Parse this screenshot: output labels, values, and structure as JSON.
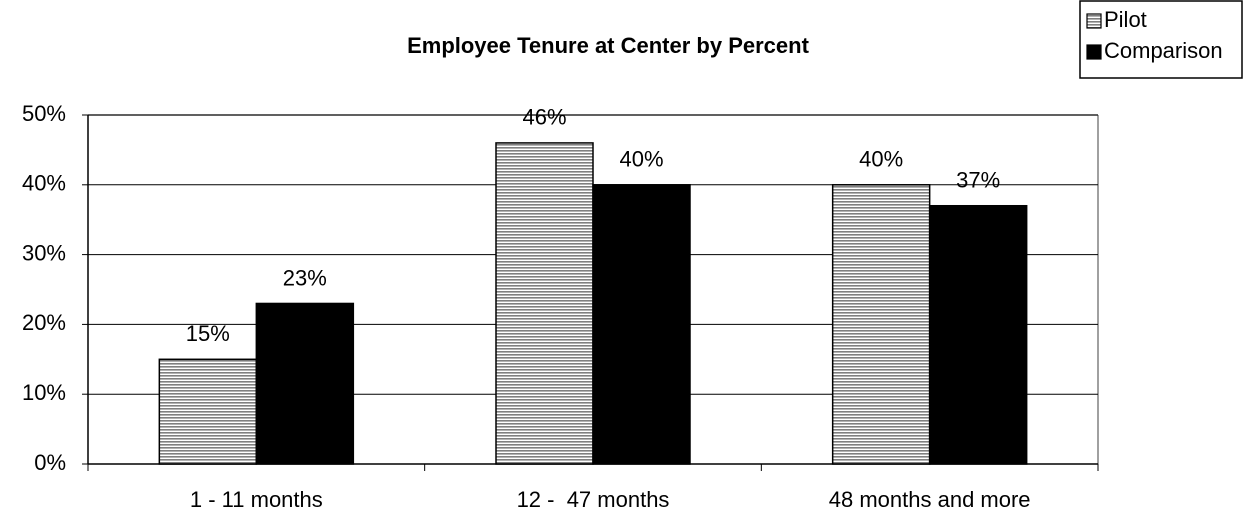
{
  "chart_data": {
    "type": "bar",
    "title": "Employee Tenure at Center by Percent",
    "categories": [
      "1 - 11 months",
      "12 -  47 months",
      "48 months and more"
    ],
    "series": [
      {
        "name": "Pilot",
        "color": "#808080",
        "values": [
          15,
          46,
          40
        ],
        "value_labels": [
          "15%",
          "46%",
          "40%"
        ]
      },
      {
        "name": "Comparison",
        "color": "#000000",
        "values": [
          23,
          40,
          37
        ],
        "value_labels": [
          "23%",
          "40%",
          "37%"
        ]
      }
    ],
    "ylim": [
      0,
      50
    ],
    "yticks": [
      {
        "value": 0,
        "label": "0%"
      },
      {
        "value": 10,
        "label": "10%"
      },
      {
        "value": 20,
        "label": "20%"
      },
      {
        "value": 30,
        "label": "30%"
      },
      {
        "value": 40,
        "label": "40%"
      },
      {
        "value": 50,
        "label": "50%"
      }
    ],
    "grid": true,
    "legend": "top-right"
  }
}
